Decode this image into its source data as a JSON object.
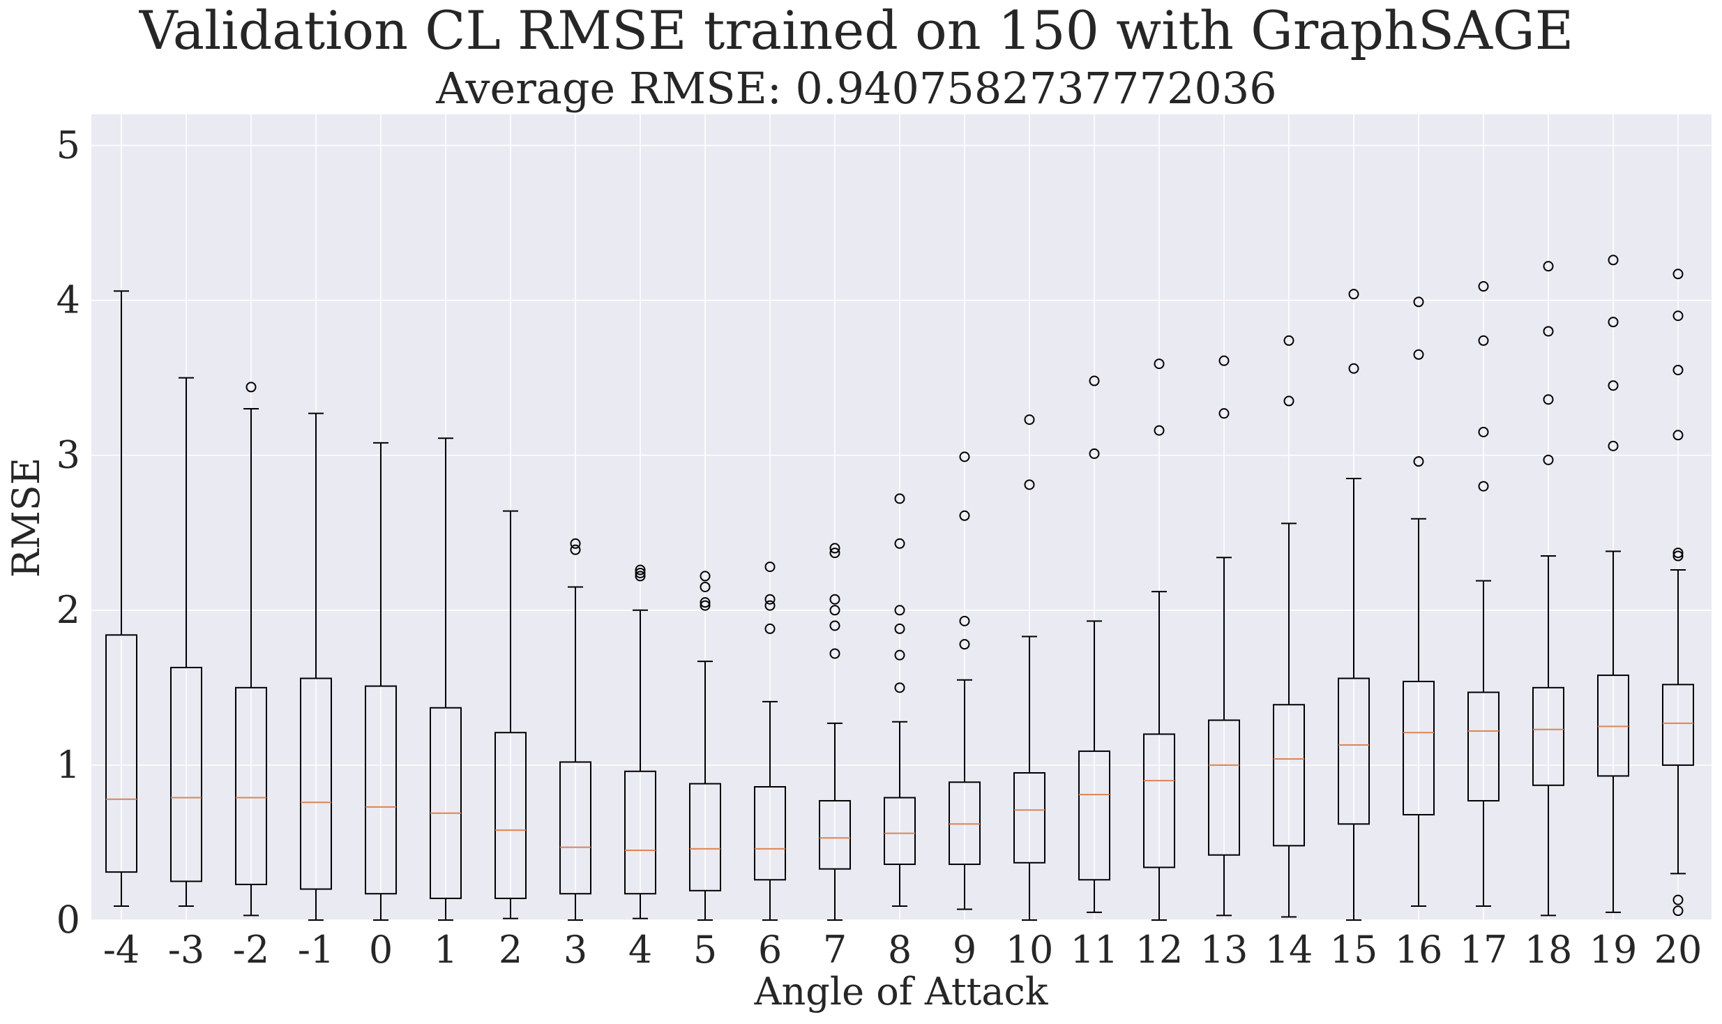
{
  "chart_data": {
    "type": "box",
    "title": "Validation CL RMSE trained on 150 with GraphSAGE",
    "subtitle": "Average RMSE:  0.9407582737772036",
    "xlabel": "Angle of Attack",
    "ylabel": "RMSE",
    "ylim": [
      0,
      5.2
    ],
    "yticks": [
      0,
      1,
      2,
      3,
      4,
      5
    ],
    "grid": true,
    "colors": {
      "background": "#eaeaf2",
      "grid": "#ffffff",
      "box": "#000000",
      "median": "#dd8452",
      "text": "#262626"
    },
    "categories": [
      "-4",
      "-3",
      "-2",
      "-1",
      "0",
      "1",
      "2",
      "3",
      "4",
      "5",
      "6",
      "7",
      "8",
      "9",
      "10",
      "11",
      "12",
      "13",
      "14",
      "15",
      "16",
      "17",
      "18",
      "19",
      "20"
    ],
    "boxes": [
      {
        "label": "-4",
        "whislo": 0.09,
        "q1": 0.31,
        "median": 0.78,
        "q3": 1.84,
        "whishi": 4.06,
        "fliers": []
      },
      {
        "label": "-3",
        "whislo": 0.09,
        "q1": 0.25,
        "median": 0.79,
        "q3": 1.63,
        "whishi": 3.5,
        "fliers": []
      },
      {
        "label": "-2",
        "whislo": 0.03,
        "q1": 0.23,
        "median": 0.79,
        "q3": 1.5,
        "whishi": 3.3,
        "fliers": [
          3.44
        ]
      },
      {
        "label": "-1",
        "whislo": 0.0,
        "q1": 0.2,
        "median": 0.76,
        "q3": 1.56,
        "whishi": 3.27,
        "fliers": []
      },
      {
        "label": "0",
        "whislo": 0.0,
        "q1": 0.17,
        "median": 0.73,
        "q3": 1.51,
        "whishi": 3.08,
        "fliers": []
      },
      {
        "label": "1",
        "whislo": 0.0,
        "q1": 0.14,
        "median": 0.69,
        "q3": 1.37,
        "whishi": 3.11,
        "fliers": []
      },
      {
        "label": "2",
        "whislo": 0.01,
        "q1": 0.14,
        "median": 0.58,
        "q3": 1.21,
        "whishi": 2.64,
        "fliers": []
      },
      {
        "label": "3",
        "whislo": 0.0,
        "q1": 0.17,
        "median": 0.47,
        "q3": 1.02,
        "whishi": 2.15,
        "fliers": [
          2.39,
          2.43
        ]
      },
      {
        "label": "4",
        "whislo": 0.01,
        "q1": 0.17,
        "median": 0.45,
        "q3": 0.96,
        "whishi": 2.0,
        "fliers": [
          2.22,
          2.24,
          2.26
        ]
      },
      {
        "label": "5",
        "whislo": 0.0,
        "q1": 0.19,
        "median": 0.46,
        "q3": 0.88,
        "whishi": 1.67,
        "fliers": [
          2.03,
          2.05,
          2.15,
          2.22
        ]
      },
      {
        "label": "6",
        "whislo": 0.0,
        "q1": 0.26,
        "median": 0.46,
        "q3": 0.86,
        "whishi": 1.41,
        "fliers": [
          1.88,
          2.03,
          2.07,
          2.28
        ]
      },
      {
        "label": "7",
        "whislo": 0.0,
        "q1": 0.33,
        "median": 0.53,
        "q3": 0.77,
        "whishi": 1.27,
        "fliers": [
          1.72,
          1.9,
          2.0,
          2.07,
          2.37,
          2.4
        ]
      },
      {
        "label": "8",
        "whislo": 0.09,
        "q1": 0.36,
        "median": 0.56,
        "q3": 0.79,
        "whishi": 1.28,
        "fliers": [
          1.5,
          1.71,
          1.88,
          2.0,
          2.43,
          2.72
        ]
      },
      {
        "label": "9",
        "whislo": 0.07,
        "q1": 0.36,
        "median": 0.62,
        "q3": 0.89,
        "whishi": 1.55,
        "fliers": [
          1.78,
          1.93,
          2.61,
          2.99
        ]
      },
      {
        "label": "10",
        "whislo": 0.0,
        "q1": 0.37,
        "median": 0.71,
        "q3": 0.95,
        "whishi": 1.83,
        "fliers": [
          2.81,
          3.23
        ]
      },
      {
        "label": "11",
        "whislo": 0.05,
        "q1": 0.26,
        "median": 0.81,
        "q3": 1.09,
        "whishi": 1.93,
        "fliers": [
          3.01,
          3.48
        ]
      },
      {
        "label": "12",
        "whislo": 0.0,
        "q1": 0.34,
        "median": 0.9,
        "q3": 1.2,
        "whishi": 2.12,
        "fliers": [
          3.16,
          3.59
        ]
      },
      {
        "label": "13",
        "whislo": 0.03,
        "q1": 0.42,
        "median": 1.0,
        "q3": 1.29,
        "whishi": 2.34,
        "fliers": [
          3.27,
          3.61
        ]
      },
      {
        "label": "14",
        "whislo": 0.02,
        "q1": 0.48,
        "median": 1.04,
        "q3": 1.39,
        "whishi": 2.56,
        "fliers": [
          3.35,
          3.74
        ]
      },
      {
        "label": "15",
        "whislo": 0.0,
        "q1": 0.62,
        "median": 1.13,
        "q3": 1.56,
        "whishi": 2.85,
        "fliers": [
          3.56,
          4.04
        ]
      },
      {
        "label": "16",
        "whislo": 0.09,
        "q1": 0.68,
        "median": 1.21,
        "q3": 1.54,
        "whishi": 2.59,
        "fliers": [
          2.96,
          3.65,
          3.99
        ]
      },
      {
        "label": "17",
        "whislo": 0.09,
        "q1": 0.77,
        "median": 1.22,
        "q3": 1.47,
        "whishi": 2.19,
        "fliers": [
          2.8,
          3.15,
          3.74,
          4.09
        ]
      },
      {
        "label": "18",
        "whislo": 0.03,
        "q1": 0.87,
        "median": 1.23,
        "q3": 1.5,
        "whishi": 2.35,
        "fliers": [
          2.97,
          3.36,
          3.8,
          4.22
        ]
      },
      {
        "label": "19",
        "whislo": 0.05,
        "q1": 0.93,
        "median": 1.25,
        "q3": 1.58,
        "whishi": 2.38,
        "fliers": [
          3.06,
          3.45,
          3.86,
          4.26
        ]
      },
      {
        "label": "20",
        "whislo": 0.3,
        "q1": 1.0,
        "median": 1.27,
        "q3": 1.52,
        "whishi": 2.26,
        "fliers": [
          0.06,
          0.13,
          2.35,
          2.37,
          3.13,
          3.55,
          3.9,
          4.17
        ]
      }
    ]
  }
}
